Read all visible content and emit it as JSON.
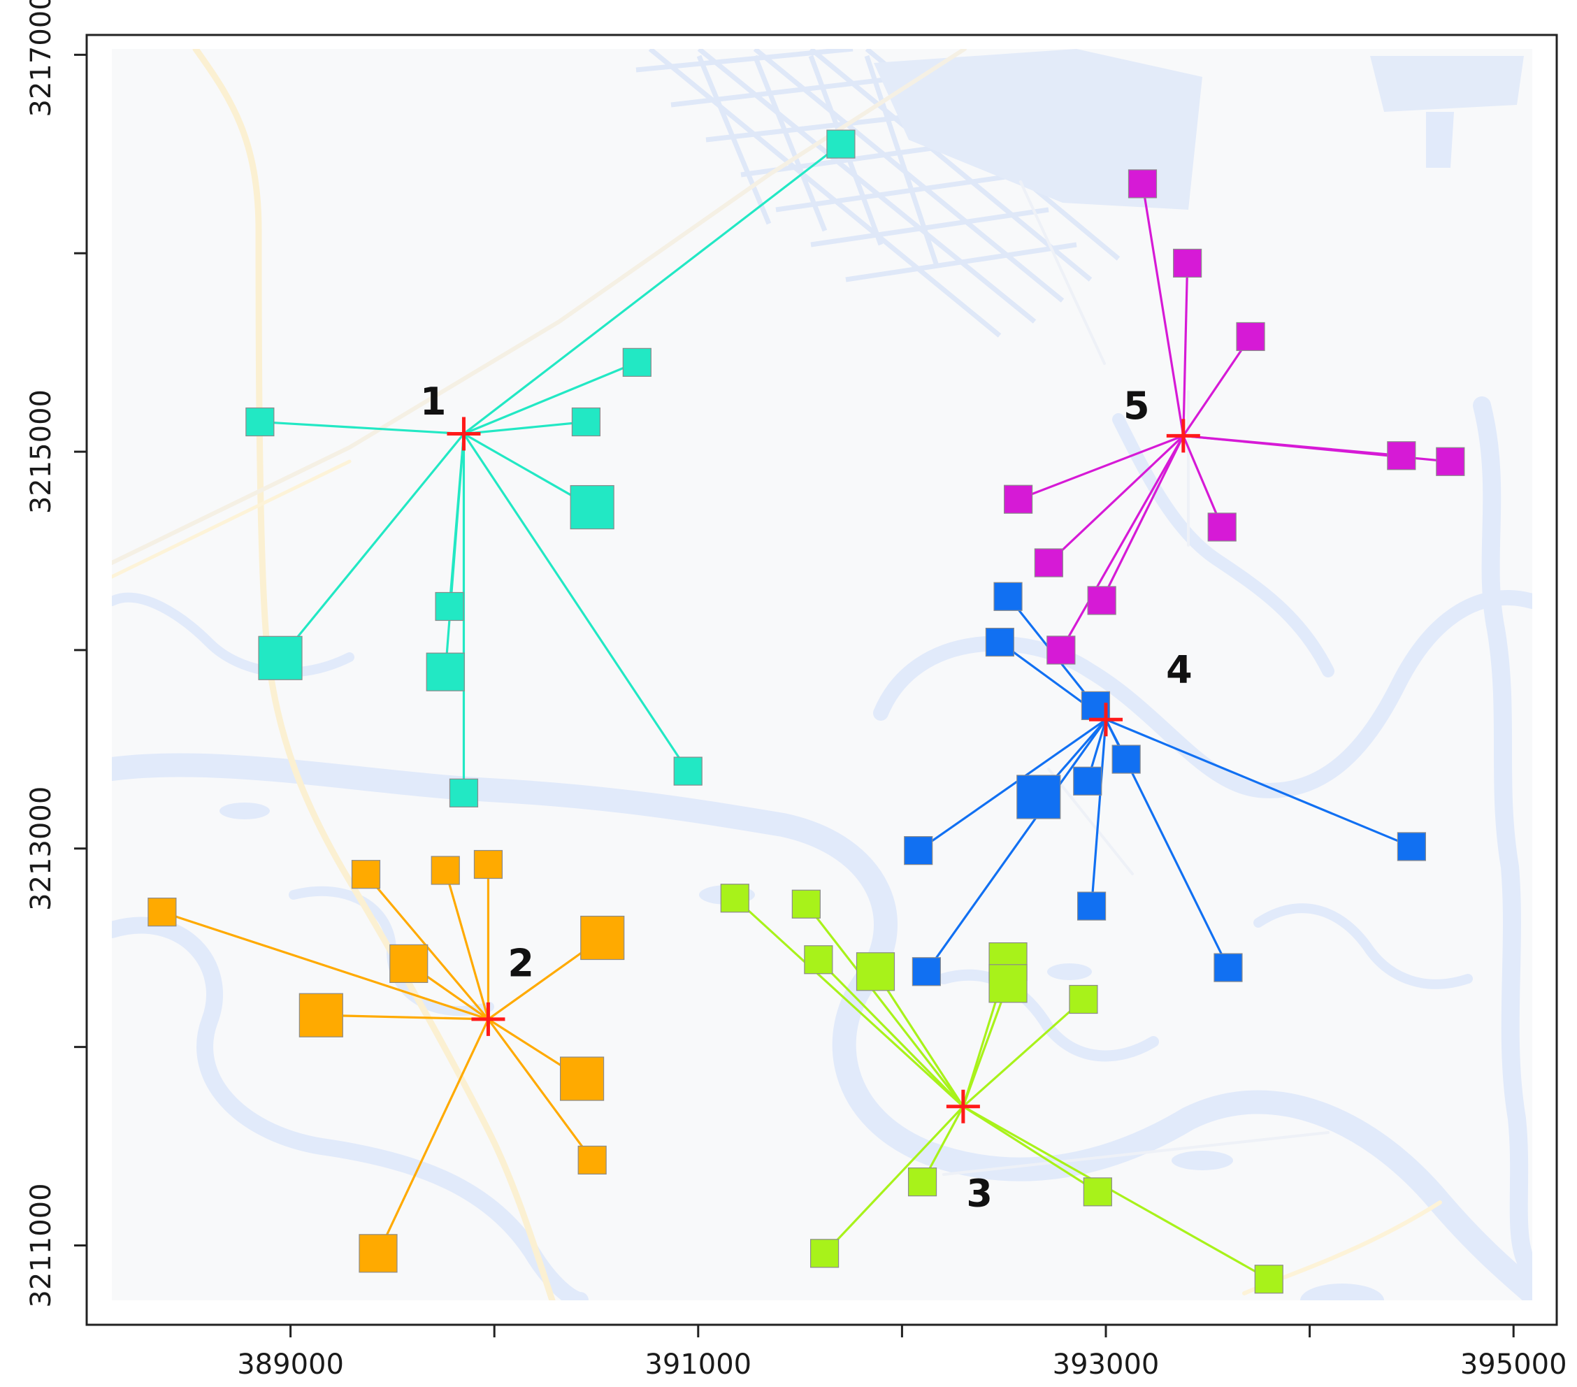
{
  "figure": {
    "type": "cluster-map",
    "x_unit": "m",
    "y_unit": "m"
  },
  "axes": {
    "xlim": [
      388000,
      395200
    ],
    "ylim": [
      3210600,
      3217100
    ],
    "x_major_ticks": [
      389000,
      391000,
      393000,
      395000
    ],
    "x_minor_ticks": [
      390000,
      392000,
      394000
    ],
    "y_major_ticks": [
      3211000,
      3213000,
      3215000,
      3217000
    ],
    "y_minor_ticks": [
      3212000,
      3214000,
      3216000
    ],
    "x_tick_labels": [
      "389000",
      "391000",
      "393000",
      "395000"
    ],
    "y_tick_labels": [
      "3211000",
      "3213000",
      "3215000",
      "3217000"
    ]
  },
  "colors": {
    "cluster_1": "#22e8c4",
    "cluster_2": "#ffaa00",
    "cluster_3": "#a8f21a",
    "cluster_4": "#1170f2",
    "cluster_5": "#d61ad6",
    "center_marker": "#ff1a1a",
    "basemap_water": "#e1eafa",
    "basemap_land": "#f8f9fa",
    "basemap_road": "#fdf3d8"
  },
  "clusters": [
    {
      "id": "1",
      "label": "1",
      "color_key": "cluster_1",
      "label_pos": [
        389700,
        3215250
      ],
      "center": [
        389850,
        3215090
      ],
      "points": [
        {
          "x": 391700,
          "y": 3216550,
          "size": "s"
        },
        {
          "x": 390700,
          "y": 3215450,
          "size": "s"
        },
        {
          "x": 390450,
          "y": 3215150,
          "size": "s"
        },
        {
          "x": 388850,
          "y": 3215150,
          "size": "s"
        },
        {
          "x": 390480,
          "y": 3214720,
          "size": "l"
        },
        {
          "x": 388950,
          "y": 3213960,
          "size": "l"
        },
        {
          "x": 389780,
          "y": 3214220,
          "size": "s"
        },
        {
          "x": 389760,
          "y": 3213890,
          "size": "m"
        },
        {
          "x": 389850,
          "y": 3213280,
          "size": "s"
        },
        {
          "x": 390950,
          "y": 3213390,
          "size": "s"
        }
      ]
    },
    {
      "id": "2",
      "label": "2",
      "color_key": "cluster_2",
      "label_pos": [
        390130,
        3212420
      ],
      "center": [
        389970,
        3212140
      ],
      "points": [
        {
          "x": 388370,
          "y": 3212680,
          "size": "s"
        },
        {
          "x": 389370,
          "y": 3212870,
          "size": "s"
        },
        {
          "x": 389760,
          "y": 3212890,
          "size": "s"
        },
        {
          "x": 389970,
          "y": 3212920,
          "size": "s"
        },
        {
          "x": 389580,
          "y": 3212420,
          "size": "m"
        },
        {
          "x": 389150,
          "y": 3212160,
          "size": "l"
        },
        {
          "x": 390530,
          "y": 3212550,
          "size": "l"
        },
        {
          "x": 390430,
          "y": 3211840,
          "size": "l"
        },
        {
          "x": 390480,
          "y": 3211430,
          "size": "s"
        },
        {
          "x": 389430,
          "y": 3210960,
          "size": "m"
        }
      ]
    },
    {
      "id": "3",
      "label": "3",
      "color_key": "cluster_3",
      "label_pos": [
        392380,
        3211260
      ],
      "center": [
        392300,
        3211700
      ],
      "points": [
        {
          "x": 391180,
          "y": 3212750,
          "size": "s"
        },
        {
          "x": 391530,
          "y": 3212720,
          "size": "s"
        },
        {
          "x": 391590,
          "y": 3212440,
          "size": "s"
        },
        {
          "x": 391870,
          "y": 3212380,
          "size": "m"
        },
        {
          "x": 392520,
          "y": 3212430,
          "size": "m"
        },
        {
          "x": 392520,
          "y": 3212320,
          "size": "m"
        },
        {
          "x": 392890,
          "y": 3212240,
          "size": "s"
        },
        {
          "x": 392100,
          "y": 3211320,
          "size": "s"
        },
        {
          "x": 392960,
          "y": 3211270,
          "size": "s"
        },
        {
          "x": 391620,
          "y": 3210960,
          "size": "s"
        },
        {
          "x": 393800,
          "y": 3210830,
          "size": "s"
        }
      ]
    },
    {
      "id": "4",
      "label": "4",
      "color_key": "cluster_4",
      "label_pos": [
        393360,
        3213900
      ],
      "center": [
        393000,
        3213650
      ],
      "points": [
        {
          "x": 392520,
          "y": 3214270,
          "size": "s"
        },
        {
          "x": 392480,
          "y": 3214040,
          "size": "s"
        },
        {
          "x": 392950,
          "y": 3213720,
          "size": "s"
        },
        {
          "x": 393100,
          "y": 3213450,
          "size": "s"
        },
        {
          "x": 392910,
          "y": 3213340,
          "size": "s"
        },
        {
          "x": 392670,
          "y": 3213260,
          "size": "l"
        },
        {
          "x": 392080,
          "y": 3212990,
          "size": "s"
        },
        {
          "x": 394500,
          "y": 3213010,
          "size": "s"
        },
        {
          "x": 392930,
          "y": 3212710,
          "size": "s"
        },
        {
          "x": 392120,
          "y": 3212380,
          "size": "s"
        },
        {
          "x": 393600,
          "y": 3212400,
          "size": "s"
        }
      ]
    },
    {
      "id": "5",
      "label": "5",
      "color_key": "cluster_5",
      "label_pos": [
        393150,
        3215230
      ],
      "center": [
        393380,
        3215080
      ],
      "points": [
        {
          "x": 393180,
          "y": 3216350,
          "size": "s"
        },
        {
          "x": 393400,
          "y": 3215950,
          "size": "s"
        },
        {
          "x": 393710,
          "y": 3215580,
          "size": "s"
        },
        {
          "x": 394450,
          "y": 3214980,
          "size": "s"
        },
        {
          "x": 394690,
          "y": 3214950,
          "size": "s"
        },
        {
          "x": 392570,
          "y": 3214760,
          "size": "s"
        },
        {
          "x": 393570,
          "y": 3214620,
          "size": "s"
        },
        {
          "x": 392720,
          "y": 3214440,
          "size": "s"
        },
        {
          "x": 392980,
          "y": 3214250,
          "size": "s"
        },
        {
          "x": 392780,
          "y": 3214000,
          "size": "s"
        }
      ]
    }
  ]
}
